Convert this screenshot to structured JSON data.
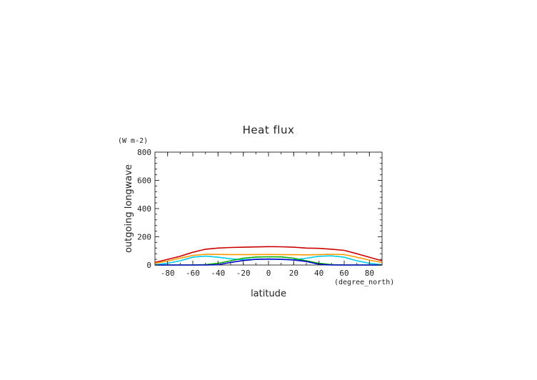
{
  "chart_data": {
    "type": "line",
    "title": "Heat flux",
    "xlabel": "latitude",
    "ylabel": "outgoing longwave",
    "xunit": "(degree_north)",
    "yunit": "(W m-2)",
    "xlim": [
      -90,
      90
    ],
    "ylim": [
      0,
      800
    ],
    "xticks": [
      -80,
      -60,
      -40,
      -20,
      0,
      20,
      40,
      60,
      80
    ],
    "yticks": [
      0,
      200,
      400,
      600,
      800
    ],
    "grid": false,
    "series": [
      {
        "color": "#cc0000",
        "x": [
          -90,
          -80,
          -70,
          -60,
          -50,
          -40,
          -30,
          -20,
          -10,
          0,
          10,
          20,
          30,
          40,
          50,
          60,
          70,
          80,
          90
        ],
        "y": [
          18,
          40,
          62,
          90,
          112,
          120,
          124,
          126,
          128,
          130,
          129,
          126,
          120,
          118,
          112,
          104,
          80,
          55,
          30
        ]
      },
      {
        "color": "#ff9900",
        "x": [
          -90,
          -80,
          -70,
          -60,
          -50,
          -40,
          -30,
          -20,
          -10,
          0,
          10,
          20,
          30,
          40,
          50,
          60,
          70,
          80,
          90
        ],
        "y": [
          12,
          28,
          48,
          68,
          76,
          75,
          74,
          74,
          74,
          75,
          74,
          73,
          72,
          74,
          76,
          74,
          55,
          35,
          18
        ]
      },
      {
        "color": "#00ccee",
        "x": [
          -90,
          -80,
          -70,
          -60,
          -50,
          -40,
          -30,
          -20,
          -10,
          0,
          10,
          20,
          30,
          40,
          50,
          60,
          70,
          80,
          90
        ],
        "y": [
          2,
          12,
          30,
          55,
          63,
          55,
          44,
          38,
          40,
          42,
          40,
          37,
          48,
          62,
          65,
          55,
          30,
          12,
          2
        ]
      },
      {
        "color": "#00aa00",
        "x": [
          -90,
          -80,
          -70,
          -60,
          -50,
          -40,
          -30,
          -20,
          -10,
          0,
          10,
          20,
          30,
          40,
          50,
          60,
          70,
          80,
          90
        ],
        "y": [
          0,
          0,
          0,
          0,
          2,
          12,
          30,
          48,
          56,
          58,
          57,
          48,
          30,
          12,
          2,
          0,
          0,
          0,
          0
        ]
      },
      {
        "color": "#0000cc",
        "x": [
          -90,
          -80,
          -70,
          -60,
          -50,
          -40,
          -30,
          -20,
          -10,
          0,
          10,
          20,
          30,
          40,
          50,
          60,
          70,
          80,
          90
        ],
        "y": [
          0,
          0,
          0,
          0,
          0,
          2,
          18,
          32,
          40,
          42,
          40,
          36,
          25,
          5,
          0,
          0,
          0,
          0,
          0
        ]
      }
    ]
  }
}
